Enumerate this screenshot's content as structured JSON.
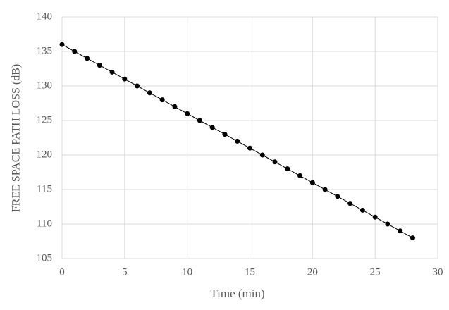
{
  "chart_data": {
    "type": "line",
    "xlabel": "Time (min)",
    "ylabel": "FREE SPACE PATH LOSS (dB)",
    "x": [
      0,
      1,
      2,
      3,
      4,
      5,
      6,
      7,
      8,
      9,
      10,
      11,
      12,
      13,
      14,
      15,
      16,
      17,
      18,
      19,
      20,
      21,
      22,
      23,
      24,
      25,
      26,
      27,
      28
    ],
    "values": [
      136,
      135,
      134,
      133,
      132,
      131,
      130,
      129,
      128,
      127,
      126,
      125,
      124,
      123,
      122,
      121,
      120,
      119,
      118,
      117,
      116,
      115,
      114,
      113,
      112,
      111,
      110,
      109,
      108
    ],
    "color": "#000000",
    "xlim": [
      0,
      30
    ],
    "xticks": [
      0,
      5,
      10,
      15,
      20,
      25,
      30
    ],
    "ylim": [
      105,
      140
    ],
    "yticks": [
      105,
      110,
      115,
      120,
      125,
      130,
      135,
      140
    ],
    "grid": true
  }
}
